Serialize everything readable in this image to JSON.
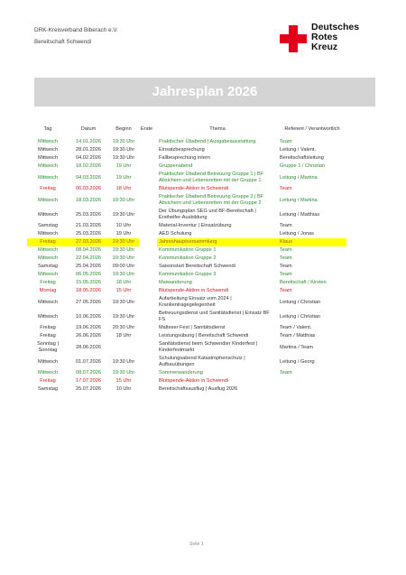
{
  "org": {
    "line1": "DRK-Kreisverband Biberach e.V.",
    "line2": "Bereitschaft Schwendi"
  },
  "logo": {
    "line1": "Deutsches",
    "line2": "Rotes",
    "line3": "Kreuz"
  },
  "banner": {
    "title": "Jahresplan 2026"
  },
  "table": {
    "headers": {
      "tag": "Tag",
      "datum": "Datum",
      "beginn": "Beginn",
      "ende": "Ende",
      "thema": "Thema",
      "verantwortlich": "Referent / Verantwortlich"
    },
    "rows": [
      {
        "style": "g",
        "tag": "Mittwoch",
        "datum": "14.01.2026",
        "beginn": "19:30 Uhr",
        "ende": "",
        "thema": "Praktischer Übabend | Ausgabeausstattung",
        "ver": "Team"
      },
      {
        "style": "",
        "tag": "Mittwoch",
        "datum": "28.01.2026",
        "beginn": "19:30 Uhr",
        "ende": "",
        "thema": "Einsatzbesprechung",
        "ver": "Leitung / Valent."
      },
      {
        "style": "",
        "tag": "Mittwoch",
        "datum": "04.02.2026",
        "beginn": "19:30 Uhr",
        "ende": "",
        "thema": "Fallbesprechung intern",
        "ver": "Bereitschaftsleitung"
      },
      {
        "style": "g",
        "tag": "Mittwoch",
        "datum": "18.02.2026",
        "beginn": "19 Uhr",
        "ende": "",
        "thema": "Gruppenabend",
        "ver": "Gruppe 1 / Christian"
      },
      {
        "style": "g",
        "tag": "Mittwoch",
        "datum": "04.03.2026",
        "beginn": "19 Uhr",
        "ende": "",
        "thema": "Praktischer Übabend Betreuung Gruppe 1 | BF Absichern und Lebensretten mit der Gruppe 1",
        "ver": "Leitung / Martina"
      },
      {
        "style": "r",
        "tag": "Freitag",
        "datum": "06.03.2026",
        "beginn": "18 Uhr",
        "ende": "",
        "thema": "Blutspende-Aktion in Schwendi",
        "ver": "Team"
      },
      {
        "style": "g",
        "tag": "Mittwoch",
        "datum": "18.03.2026",
        "beginn": "19:30 Uhr",
        "ende": "",
        "thema": "Praktischer Übabend Betreuung Gruppe 2 | BF Absichern und Lebensretten mit der Gruppe 2",
        "ver": "Leitung / Martina"
      },
      {
        "style": "",
        "tag": "Mittwoch",
        "datum": "25.03.2026",
        "beginn": "19:30 Uhr",
        "ende": "",
        "thema": "Der Übungsplan SEG und BF-Bereitschaft | Ersthelfer-Ausbildung",
        "ver": "Leitung / Matthias"
      },
      {
        "style": "",
        "tag": "Samstag",
        "datum": "21.03.2026",
        "beginn": "10 Uhr",
        "ende": "",
        "thema": "Material-Inventur | Einsatzübung",
        "ver": "Team"
      },
      {
        "style": "",
        "tag": "Mittwoch",
        "datum": "25.03.2026",
        "beginn": "19 Uhr",
        "ende": "",
        "thema": "AED Schulung",
        "ver": "Leitung / Jonas"
      },
      {
        "style": "hl",
        "tag": "Freitag",
        "datum": "27.03.2026",
        "beginn": "19:30 Uhr",
        "ende": "",
        "thema": "Jahreshauptversammlung",
        "ver": "Klaus"
      },
      {
        "style": "g",
        "tag": "Mittwoch",
        "datum": "08.04.2026",
        "beginn": "19:30 Uhr",
        "ende": "",
        "thema": "Kommunikation Gruppe 1",
        "ver": "Team"
      },
      {
        "style": "g",
        "tag": "Mittwoch",
        "datum": "22.04.2026",
        "beginn": "19:30 Uhr",
        "ende": "",
        "thema": "Kommunikation Gruppe 2",
        "ver": "Team"
      },
      {
        "style": "",
        "tag": "Samstag",
        "datum": "25.04.2026",
        "beginn": "09:00 Uhr",
        "ende": "",
        "thema": "Saisonstart Bereitschaft Schwendi",
        "ver": "Team"
      },
      {
        "style": "g",
        "tag": "Mittwoch",
        "datum": "06.05.2026",
        "beginn": "19:30 Uhr",
        "ende": "",
        "thema": "Kommunikation Gruppe 3",
        "ver": "Team"
      },
      {
        "style": "g",
        "tag": "Freitag",
        "datum": "15.05.2026",
        "beginn": "18 Uhr",
        "ende": "",
        "thema": "Maiwanderung",
        "ver": "Bereitschaft / Kirsten"
      },
      {
        "style": "r",
        "tag": "Montag",
        "datum": "18.05.2026",
        "beginn": "15 Uhr",
        "ende": "",
        "thema": "Blutspende-Aktion in Schwendi",
        "ver": "Team"
      },
      {
        "style": "",
        "tag": "Mittwoch",
        "datum": "27.05.2026",
        "beginn": "19:30 Uhr",
        "ende": "",
        "thema": "Aufarbeitung Einsatz vom 2024 | Krankentragegelegenheit",
        "ver": "Leitung / Christian"
      },
      {
        "style": "",
        "tag": "Mittwoch",
        "datum": "10.06.2026",
        "beginn": "19:30 Uhr",
        "ende": "",
        "thema": "Betreuungsdienst und Sanitätsdienst | Einsatz BF FS",
        "ver": "Leitung / Christian"
      },
      {
        "style": "",
        "tag": "Freitag",
        "datum": "19.06.2026",
        "beginn": "20:30 Uhr",
        "ende": "",
        "thema": "Malteser Fest | Sanitätsdienst",
        "ver": "Team / Valent."
      },
      {
        "style": "",
        "tag": "Freitag",
        "datum": "26.06.2026",
        "beginn": "18 Uhr",
        "ende": "",
        "thema": "Leistungsübung | Bereitschaft Schwendi",
        "ver": "Team / Matthias"
      },
      {
        "style": "",
        "tag": "Sonntag | Sonntag",
        "datum": "28.06.2026",
        "beginn": "",
        "ende": "",
        "thema": "Sanitätsdienst beim Schwendier Kinderfest | Kinderfestmarkt",
        "ver": "Martina / Team"
      },
      {
        "style": "",
        "tag": "Mittwoch",
        "datum": "01.07.2026",
        "beginn": "19:30 Uhr",
        "ende": "",
        "thema": "Schulungsabend Katastrophenschutz | Aufbauübungen",
        "ver": "Leitung / Georg"
      },
      {
        "style": "g",
        "tag": "Mittwoch",
        "datum": "08.07.2026",
        "beginn": "19:30 Uhr",
        "ende": "",
        "thema": "Sommerwanderung",
        "ver": "Team"
      },
      {
        "style": "r",
        "tag": "Freitag",
        "datum": "17.07.2026",
        "beginn": "15 Uhr",
        "ende": "",
        "thema": "Blutspende-Aktion in Schwendi",
        "ver": ""
      },
      {
        "style": "",
        "tag": "Samstag",
        "datum": "25.07.2026",
        "beginn": "10 Uhr",
        "ende": "",
        "thema": "Bereitschaftsausflug | Ausflug 2026",
        "ver": ""
      }
    ]
  },
  "page": {
    "number": "Seite 1"
  }
}
